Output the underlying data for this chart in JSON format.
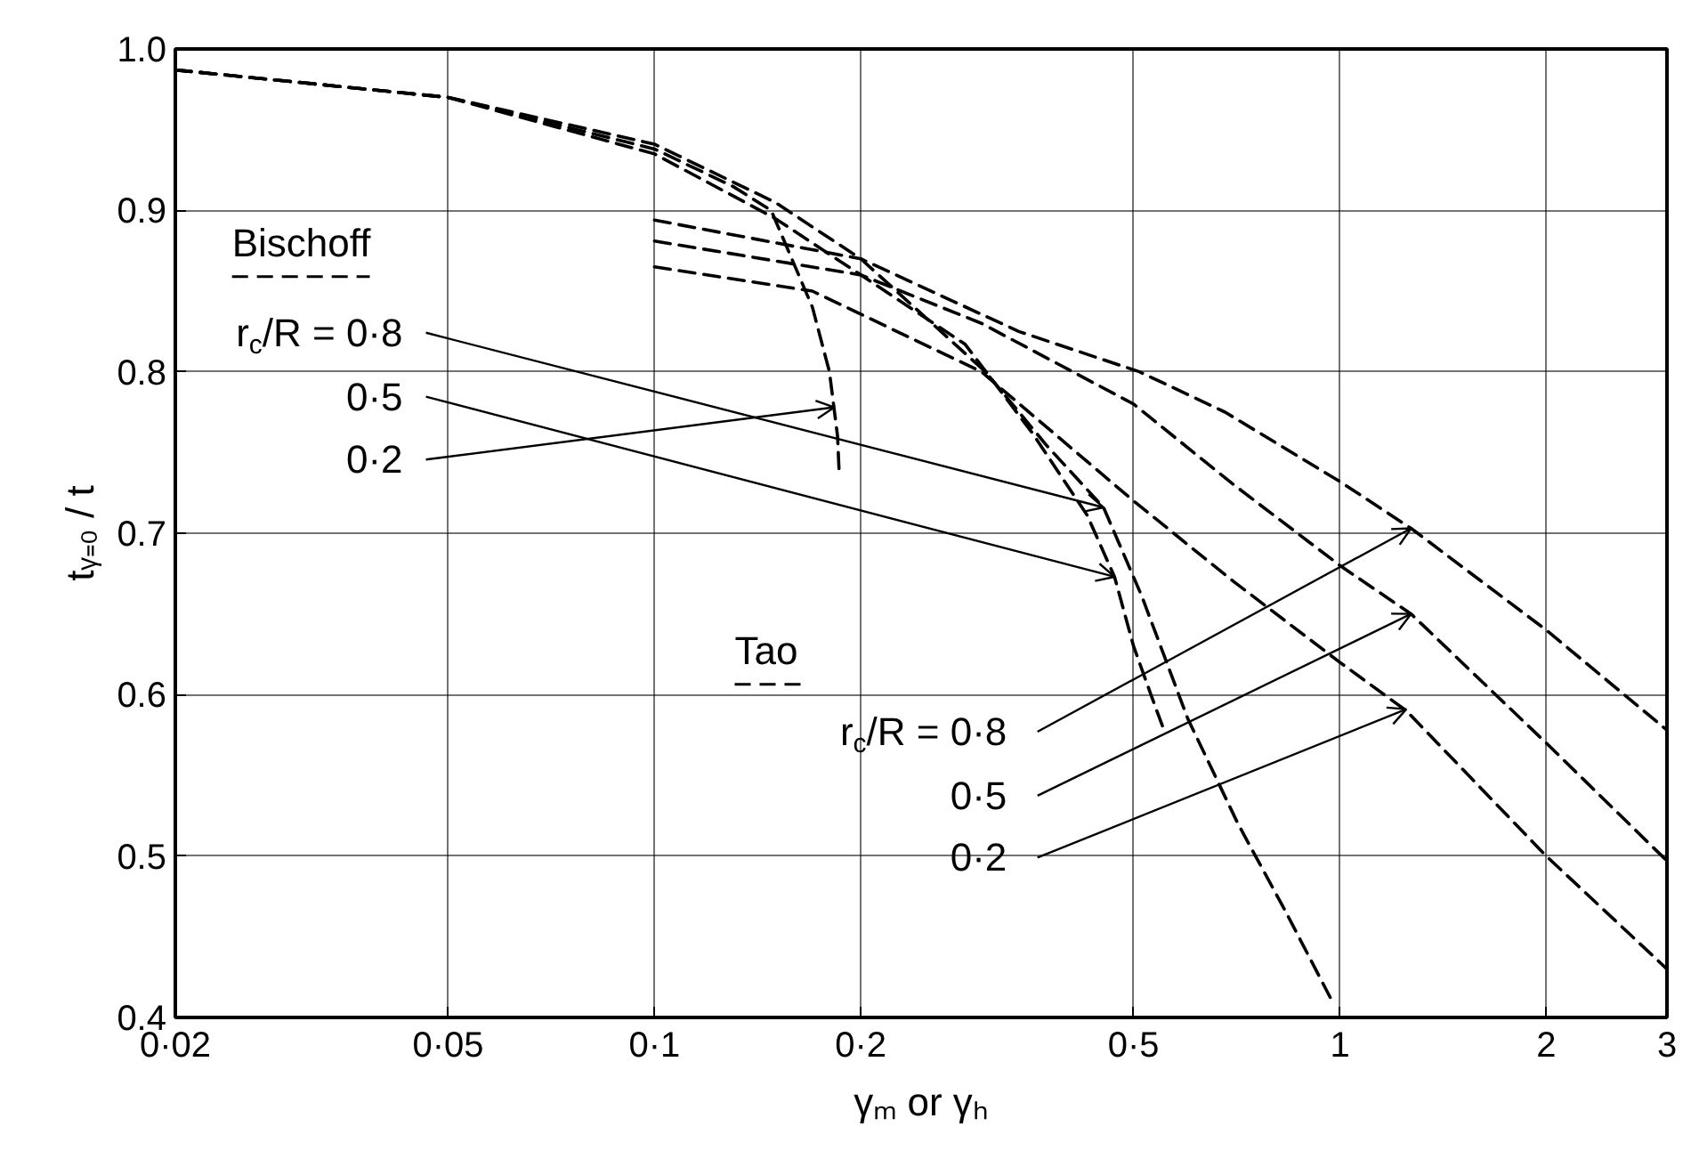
{
  "chart_data": {
    "type": "line",
    "xlabel": "γₘ or γₕ",
    "ylabel": "tᵧ₌₀ / t",
    "log": "x",
    "grid": true,
    "line_style": "dashed",
    "xlim": [
      0.02,
      3
    ],
    "ylim": [
      0.4,
      1.0
    ],
    "xticks": [
      {
        "value": 0.02,
        "label": "0·02"
      },
      {
        "value": 0.05,
        "label": "0·05"
      },
      {
        "value": 0.1,
        "label": "0·1"
      },
      {
        "value": 0.2,
        "label": "0·2"
      },
      {
        "value": 0.5,
        "label": "0·5"
      },
      1,
      2,
      3
    ],
    "yticks": [
      0.4,
      0.5,
      0.6,
      0.7,
      0.8,
      0.9,
      {
        "value": 1.0,
        "label": "1.0"
      }
    ],
    "series": [
      {
        "color": "#000000",
        "x": [
          0.02,
          0.05,
          0.1,
          0.15,
          0.2,
          0.304,
          0.374,
          0.452,
          0.514,
          0.6,
          0.71,
          0.83,
          0.98
        ],
        "values": [
          0.987,
          0.97,
          0.941,
          0.905,
          0.87,
          0.8,
          0.754,
          0.716,
          0.661,
          0.585,
          0.52,
          0.467,
          0.408
        ]
      },
      {
        "color": "#000000",
        "x": [
          0.02,
          0.05,
          0.1,
          0.15,
          0.2,
          0.284,
          0.356,
          0.428,
          0.469,
          0.5,
          0.53,
          0.556
        ],
        "values": [
          0.987,
          0.97,
          0.935,
          0.895,
          0.86,
          0.817,
          0.762,
          0.711,
          0.673,
          0.63,
          0.6,
          0.576
        ]
      },
      {
        "color": "#000000",
        "x": [
          0.02,
          0.05,
          0.1,
          0.13,
          0.148,
          0.17,
          0.18,
          0.185,
          0.186
        ],
        "values": [
          0.987,
          0.97,
          0.938,
          0.915,
          0.9,
          0.84,
          0.8,
          0.76,
          0.737
        ]
      },
      {
        "color": "#000000",
        "x": [
          0.1,
          0.2,
          0.34,
          0.51,
          0.68,
          1.0,
          1.27,
          2.0,
          3.0
        ],
        "values": [
          0.894,
          0.87,
          0.825,
          0.8,
          0.775,
          0.732,
          0.703,
          0.64,
          0.578
        ]
      },
      {
        "color": "#000000",
        "x": [
          0.1,
          0.2,
          0.3,
          0.5,
          0.7,
          1.0,
          1.27,
          2.0,
          3.0
        ],
        "values": [
          0.881,
          0.86,
          0.83,
          0.78,
          0.73,
          0.68,
          0.65,
          0.57,
          0.497
        ]
      },
      {
        "color": "#000000",
        "x": [
          0.1,
          0.17,
          0.3,
          0.5,
          0.7,
          1.0,
          1.25,
          2.0,
          3.0
        ],
        "values": [
          0.865,
          0.85,
          0.8,
          0.72,
          0.67,
          0.62,
          0.59,
          0.5,
          0.43
        ]
      }
    ],
    "annotations": [
      "Bischoff",
      {
        "text": "r$_{c}$/R = 0·8",
        "x": 0.452,
        "y": 0.716
      },
      {
        "text": "0·5",
        "x": 0.469,
        "y": 0.673
      },
      {
        "text": "0·2",
        "x": 0.183,
        "y": 0.778
      },
      "Tao",
      {
        "text": "r$_{c}$/R = 0·8",
        "x": 1.27,
        "y": 0.703
      },
      {
        "text": "0·5",
        "x": 1.27,
        "y": 0.65
      },
      {
        "text": "0·2",
        "x": 1.25,
        "y": 0.591
      }
    ]
  }
}
